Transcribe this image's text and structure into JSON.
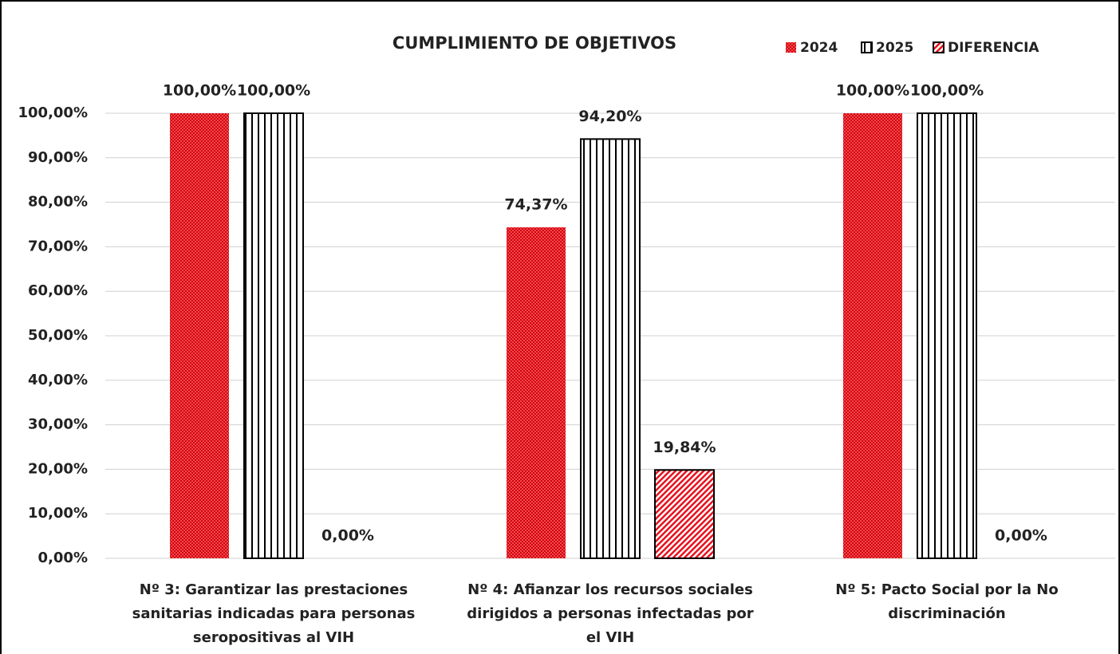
{
  "chart_data": {
    "type": "bar",
    "title": "CUMPLIMIENTO DE OBJETIVOS",
    "categories": [
      "Nº 3: Garantizar las prestaciones sanitarias indicadas para personas seropositivas al VIH",
      "Nº 4: Afianzar los recursos sociales dirigidos a personas infectadas por el VIH",
      "Nº 5: Pacto Social por la No discriminación"
    ],
    "series": [
      {
        "name": "2024",
        "color": "#e8101c",
        "pattern": "dots",
        "values": [
          100,
          74.37,
          100
        ],
        "value_labels": [
          "100,00%",
          "74,37%",
          "100,00%"
        ]
      },
      {
        "name": "2025",
        "color": "#000000",
        "pattern": "vertical",
        "values": [
          100,
          94.2,
          100
        ],
        "value_labels": [
          "100,00%",
          "94,20%",
          "100,00%"
        ]
      },
      {
        "name": "DIFERENCIA",
        "color": "#e8101c",
        "pattern": "diagonal",
        "values": [
          0,
          19.84,
          0
        ],
        "value_labels": [
          "0,00%",
          "19,84%",
          "0,00%"
        ]
      }
    ],
    "ylim": [
      0,
      100
    ],
    "yticks": [
      {
        "value": 0,
        "label": "0,00%"
      },
      {
        "value": 10,
        "label": "10,00%"
      },
      {
        "value": 20,
        "label": "20,00%"
      },
      {
        "value": 30,
        "label": "30,00%"
      },
      {
        "value": 40,
        "label": "40,00%"
      },
      {
        "value": 50,
        "label": "50,00%"
      },
      {
        "value": 60,
        "label": "60,00%"
      },
      {
        "value": 70,
        "label": "70,00%"
      },
      {
        "value": 80,
        "label": "80,00%"
      },
      {
        "value": 90,
        "label": "90,00%"
      },
      {
        "value": 100,
        "label": "100,00%"
      }
    ],
    "grid": true,
    "legend": "top-right"
  }
}
